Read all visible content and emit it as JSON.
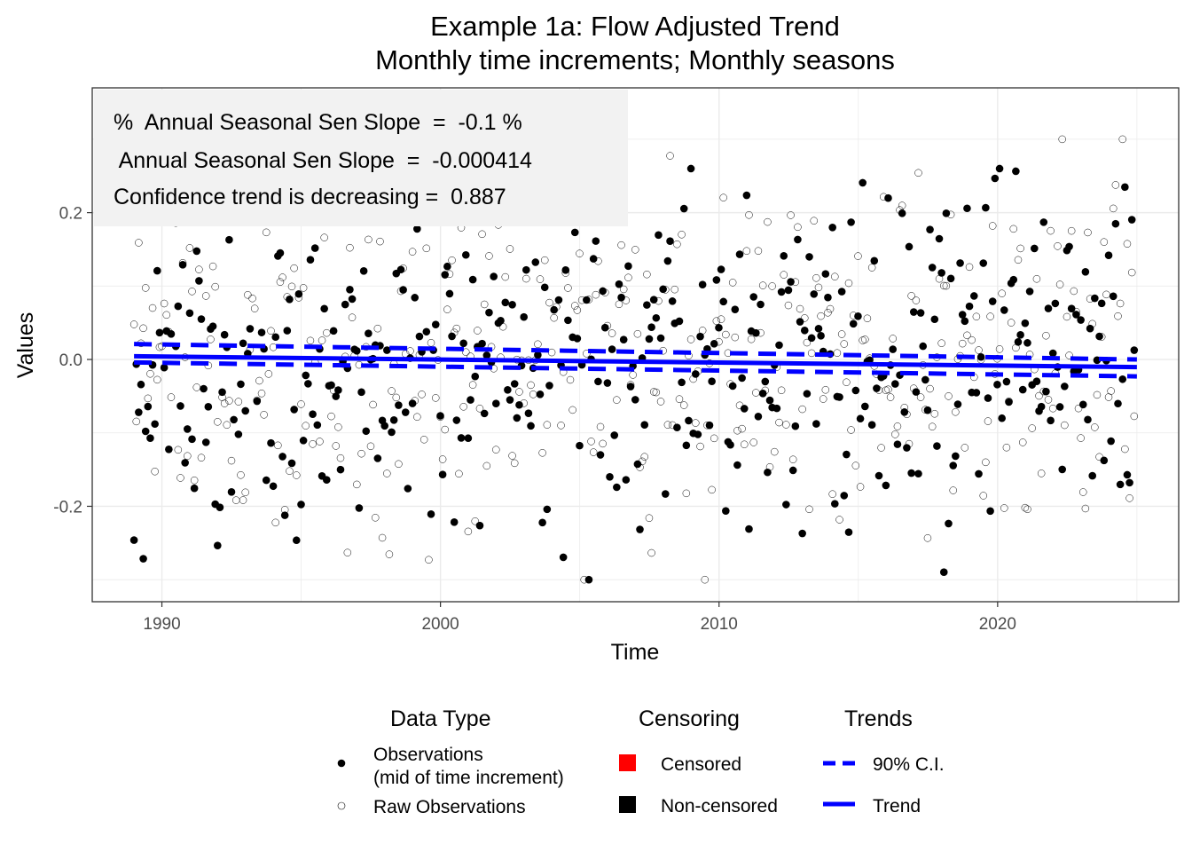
{
  "chart_data": {
    "type": "scatter",
    "title": "Example 1a: Flow Adjusted Trend",
    "subtitle": "Monthly time increments; Monthly seasons",
    "xlabel": "Time",
    "ylabel": "Values",
    "xlim": [
      1987.5,
      2026.5
    ],
    "ylim": [
      -0.33,
      0.37
    ],
    "x_ticks": [
      1990,
      2000,
      2010,
      2020
    ],
    "y_ticks": [
      -0.2,
      0.0,
      0.2
    ],
    "x_tick_labels": [
      "1990",
      "2000",
      "2010",
      "2020"
    ],
    "y_tick_labels": [
      "-0.2",
      "0.0",
      "0.2"
    ],
    "grid": true,
    "stats_box": [
      "%  Annual Seasonal Sen Slope  =  -0.1 %",
      " Annual Seasonal Sen Slope  =  -0.000414",
      "Confidence trend is decreasing =  0.887"
    ],
    "trend": {
      "x_start": 1989.0,
      "x_end": 2025.0,
      "y_start": 0.0045,
      "y_end": -0.0104
    },
    "ci_upper": {
      "x_start": 1989.0,
      "x_end": 2025.0,
      "y_start": 0.021,
      "y_end": 0.0
    },
    "ci_lower": {
      "x_start": 1989.0,
      "x_end": 2025.0,
      "y_start": -0.004,
      "y_end": -0.023
    },
    "series": [
      {
        "name": "Observations\n(mid of time increment)",
        "marker": "filled-circle",
        "points_x_start": 1989.0,
        "points_x_step": 0.0833,
        "points_count": 432
      },
      {
        "name": "Raw Observations",
        "marker": "open-circle",
        "points_x_start": 1989.0,
        "points_x_step": 0.0833,
        "points_count": 432
      }
    ],
    "legend_position": "bottom",
    "legend": {
      "data_type": {
        "title": "Data Type",
        "items": [
          "Observations",
          "(mid of time increment)",
          "Raw Observations"
        ]
      },
      "censoring": {
        "title": "Censoring",
        "items": [
          {
            "label": "Censored",
            "color": "#ff0000"
          },
          {
            "label": "Non-censored",
            "color": "#000000"
          }
        ]
      },
      "trends": {
        "title": "Trends",
        "items": [
          {
            "label": "90% C.I.",
            "style": "dashed",
            "color": "#0000ff"
          },
          {
            "label": "Trend",
            "style": "solid",
            "color": "#0000ff"
          }
        ]
      }
    },
    "colors": {
      "trend": "#0000ff",
      "observations": "#000000",
      "panel_border": "#333333",
      "grid": "#ebebeb",
      "stats_box": "#f2f2f2"
    }
  }
}
